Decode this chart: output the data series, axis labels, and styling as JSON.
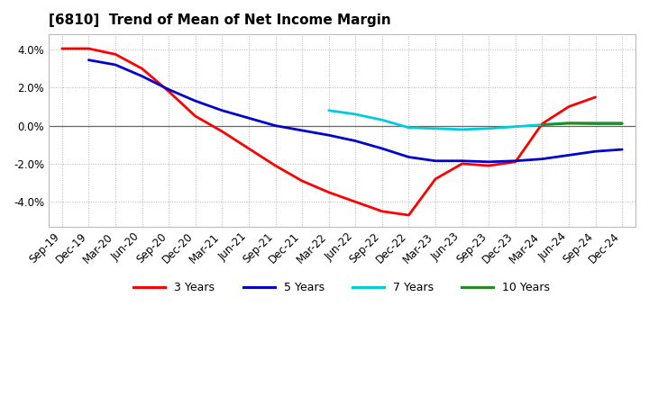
{
  "title": "[6810]  Trend of Mean of Net Income Margin",
  "x_labels": [
    "Sep-19",
    "Dec-19",
    "Mar-20",
    "Jun-20",
    "Sep-20",
    "Dec-20",
    "Mar-21",
    "Jun-21",
    "Sep-21",
    "Dec-21",
    "Mar-22",
    "Jun-22",
    "Sep-22",
    "Dec-22",
    "Mar-23",
    "Jun-23",
    "Sep-23",
    "Dec-23",
    "Mar-24",
    "Jun-24",
    "Sep-24",
    "Dec-24"
  ],
  "series": [
    {
      "name": "3 Years",
      "color": "#ff0000",
      "data_x": [
        0,
        1,
        2,
        3,
        4,
        5,
        6,
        7,
        8,
        9,
        10,
        11,
        12,
        13,
        14,
        15,
        16,
        17,
        18,
        19,
        20
      ],
      "data_y": [
        4.05,
        4.05,
        3.75,
        3.0,
        1.8,
        0.5,
        -0.3,
        -1.2,
        -2.1,
        -2.9,
        -3.5,
        -4.0,
        -4.5,
        -4.7,
        -2.8,
        -2.0,
        -2.1,
        -1.9,
        0.1,
        1.0,
        1.5
      ]
    },
    {
      "name": "5 Years",
      "color": "#0000cc",
      "data_x": [
        1,
        2,
        3,
        4,
        5,
        6,
        7,
        8,
        9,
        10,
        11,
        12,
        13,
        14,
        15,
        16,
        17,
        18,
        19,
        20,
        21
      ],
      "data_y": [
        3.45,
        3.2,
        2.6,
        1.9,
        1.3,
        0.8,
        0.4,
        0.0,
        -0.25,
        -0.5,
        -0.8,
        -1.2,
        -1.65,
        -1.85,
        -1.85,
        -1.9,
        -1.85,
        -1.75,
        -1.55,
        -1.35,
        -1.25
      ]
    },
    {
      "name": "7 Years",
      "color": "#00ccdd",
      "data_x": [
        10,
        11,
        12,
        13,
        14,
        15,
        16,
        17,
        18,
        19,
        20,
        21
      ],
      "data_y": [
        0.8,
        0.6,
        0.3,
        -0.1,
        -0.15,
        -0.2,
        -0.15,
        -0.05,
        0.05,
        0.15,
        0.15,
        0.15
      ]
    },
    {
      "name": "10 Years",
      "color": "#228B22",
      "data_x": [
        18,
        19,
        20,
        21
      ],
      "data_y": [
        0.05,
        0.12,
        0.1,
        0.1
      ]
    }
  ],
  "ylim": [
    -5.3,
    4.8
  ],
  "yticks": [
    -4.0,
    -2.0,
    0.0,
    2.0,
    4.0
  ],
  "background_color": "#ffffff",
  "legend_labels": [
    "3 Years",
    "5 Years",
    "7 Years",
    "10 Years"
  ],
  "legend_colors": [
    "#ff0000",
    "#0000cc",
    "#00ccdd",
    "#228B22"
  ]
}
